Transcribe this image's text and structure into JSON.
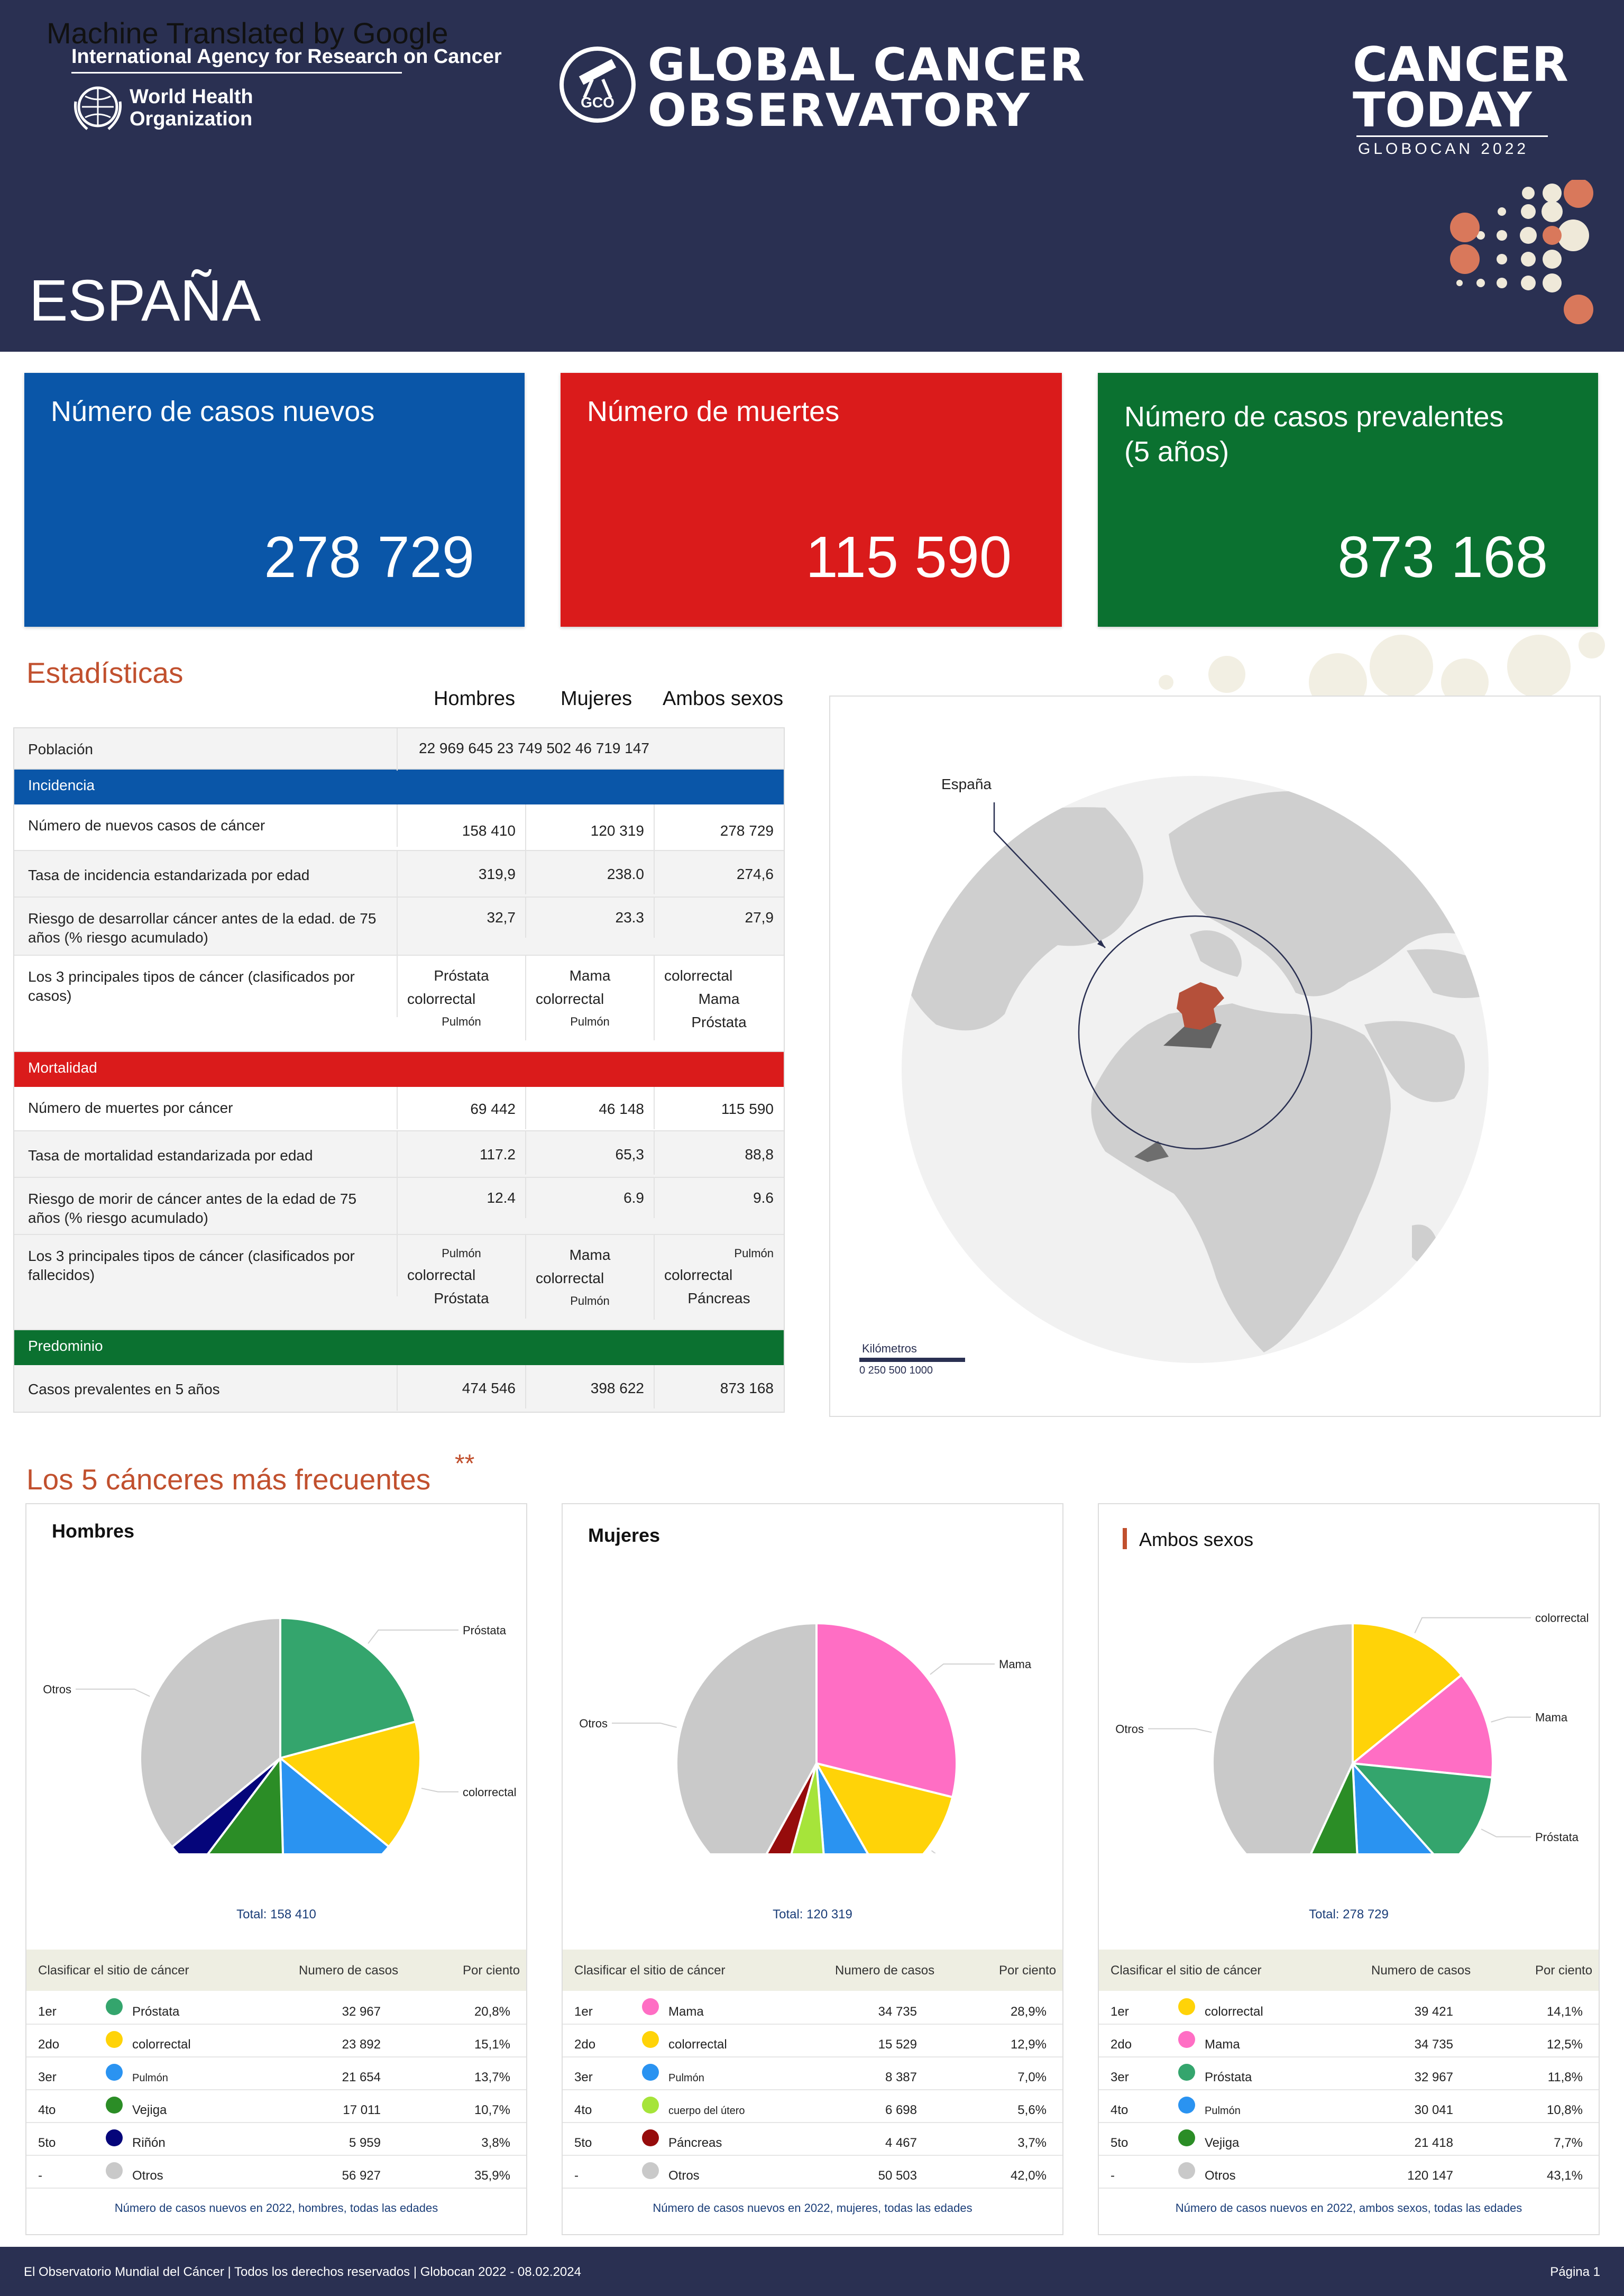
{
  "header": {
    "note": "Machine Translated by Google",
    "iarc": "International Agency for Research on Cancer",
    "who_line1": "World Health",
    "who_line2": "Organization",
    "gco_line1": "GLOBAL CANCER",
    "gco_line2": "OBSERVATORY",
    "gco_logo_text": "GCO",
    "ct_line1": "CANCER",
    "ct_line2": "TODAY",
    "ct_sub": "GLOBOCAN 2022",
    "country": "ESPAÑA"
  },
  "cards": [
    {
      "label": "Número de casos nuevos",
      "value": "278 729",
      "color": "#0a56a8"
    },
    {
      "label": "Número de muertes",
      "value": "115 590",
      "color": "#da1b1b"
    },
    {
      "label": "Número de casos prevalentes (5 años)",
      "value": "873 168",
      "color": "#0b7130"
    }
  ],
  "stats": {
    "title": "Estadísticas",
    "col_headers": [
      "Hombres",
      "Mujeres",
      "Ambos sexos"
    ],
    "population_label": "Población",
    "population_value": "22 969 645 23 749 502 46 719 147",
    "incidence_band": "Incidencia",
    "mortality_band": "Mortalidad",
    "prevalence_band": "Predominio",
    "band_colors": {
      "incidence": "#0a56a8",
      "mortality": "#da1b1b",
      "prevalence": "#0b7130"
    },
    "inc_rows": [
      {
        "label": "Número de nuevos casos de cáncer",
        "v": [
          "158 410",
          "120 319",
          "278 729"
        ]
      },
      {
        "label": "Tasa de incidencia estandarizada por edad",
        "v": [
          "319,9",
          "238.0",
          "274,6"
        ]
      },
      {
        "label": "Riesgo de desarrollar cáncer antes de la edad. de 75 años (% riesgo acumulado)",
        "v": [
          "32,7",
          "23.3",
          "27,9"
        ]
      }
    ],
    "inc_top3_label": "Los 3 principales tipos de cáncer (clasificados por casos)",
    "inc_top3": [
      [
        "Próstata",
        "colorrectal",
        "Pulmón"
      ],
      [
        "Mama",
        "colorrectal",
        "Pulmón"
      ],
      [
        "colorrectal",
        "Mama",
        "Próstata"
      ]
    ],
    "mort_rows": [
      {
        "label": "Número de muertes por cáncer",
        "v": [
          "69 442",
          "46 148",
          "115 590"
        ]
      },
      {
        "label": "Tasa de mortalidad estandarizada por edad",
        "v": [
          "117.2",
          "65,3",
          "88,8"
        ]
      },
      {
        "label": "Riesgo de morir de cáncer antes de la edad de 75 años (% riesgo acumulado)",
        "v": [
          "12.4",
          "6.9",
          "9.6"
        ]
      }
    ],
    "mort_top3_label": "Los 3 principales tipos de cáncer (clasificados por fallecidos)",
    "mort_top3": [
      [
        "Pulmón",
        "colorrectal",
        "Próstata"
      ],
      [
        "Mama",
        "colorrectal",
        "Pulmón"
      ],
      [
        "Pulmón",
        "colorrectal",
        "Páncreas"
      ]
    ],
    "prev_row": {
      "label": "Casos prevalentes en 5 años",
      "v": [
        "474 546",
        "398 622",
        "873 168"
      ]
    }
  },
  "map": {
    "label": "España",
    "scale_title": "Kilómetros",
    "scale_ticks": "0 250 500 1000"
  },
  "top5": {
    "title": "Los 5 cánceres más frecuentes",
    "marker": "**",
    "table_headers": [
      "Clasificar el sitio de cáncer",
      "Numero de casos",
      "Por ciento"
    ],
    "panels": [
      {
        "title": "Hombres",
        "total": "Total: 158 410",
        "footer": "Número de casos nuevos en 2022, hombres, todas las edades",
        "rows": [
          {
            "rank": "1er",
            "site": "Próstata",
            "cases": "32 967",
            "pct": "20,8%",
            "color": "#34a56d"
          },
          {
            "rank": "2do",
            "site": "colorrectal",
            "cases": "23 892",
            "pct": "15,1%",
            "color": "#ffd308"
          },
          {
            "rank": "3er",
            "site": "Pulmón",
            "cases": "21 654",
            "pct": "13,7%",
            "color": "#2a93f1"
          },
          {
            "rank": "4to",
            "site": "Vejiga",
            "cases": "17 011",
            "pct": "10,7%",
            "color": "#2b8d26"
          },
          {
            "rank": "5to",
            "site": "Riñón",
            "cases": "5 959",
            "pct": "3,8%",
            "color": "#05057a"
          },
          {
            "rank": "-",
            "site": "Otros",
            "cases": "56 927",
            "pct": "35,9%",
            "color": "#c9c9c9"
          }
        ]
      },
      {
        "title": "Mujeres",
        "total": "Total: 120 319",
        "footer": "Número de casos nuevos en 2022, mujeres, todas las edades",
        "rows": [
          {
            "rank": "1er",
            "site": "Mama",
            "cases": "34 735",
            "pct": "28,9%",
            "color": "#ff6ec4"
          },
          {
            "rank": "2do",
            "site": "colorrectal",
            "cases": "15 529",
            "pct": "12,9%",
            "color": "#ffd308"
          },
          {
            "rank": "3er",
            "site": "Pulmón",
            "cases": "8 387",
            "pct": "7,0%",
            "color": "#2a93f1"
          },
          {
            "rank": "4to",
            "site": "cuerpo del útero",
            "cases": "6 698",
            "pct": "5,6%",
            "color": "#a6e43a"
          },
          {
            "rank": "5to",
            "site": "Páncreas",
            "cases": "4 467",
            "pct": "3,7%",
            "color": "#960c0c"
          },
          {
            "rank": "-",
            "site": "Otros",
            "cases": "50 503",
            "pct": "42,0%",
            "color": "#c9c9c9"
          }
        ]
      },
      {
        "title": "Ambos sexos",
        "total": "Total: 278 729",
        "footer": "Número de casos nuevos en 2022, ambos sexos, todas las edades",
        "rows": [
          {
            "rank": "1er",
            "site": "colorrectal",
            "cases": "39 421",
            "pct": "14,1%",
            "color": "#ffd308"
          },
          {
            "rank": "2do",
            "site": "Mama",
            "cases": "34 735",
            "pct": "12,5%",
            "color": "#ff6ec4"
          },
          {
            "rank": "3er",
            "site": "Próstata",
            "cases": "32 967",
            "pct": "11,8%",
            "color": "#34a56d"
          },
          {
            "rank": "4to",
            "site": "Pulmón",
            "cases": "30 041",
            "pct": "10,8%",
            "color": "#2a93f1"
          },
          {
            "rank": "5to",
            "site": "Vejiga",
            "cases": "21 418",
            "pct": "7,7%",
            "color": "#2b8d26"
          },
          {
            "rank": "-",
            "site": "Otros",
            "cases": "120 147",
            "pct": "43,1%",
            "color": "#c9c9c9"
          }
        ]
      }
    ]
  },
  "chart_data": [
    {
      "type": "pie",
      "title": "Hombres",
      "categories": [
        "Próstata",
        "colorrectal",
        "Pulmón",
        "Vejiga",
        "Riñón",
        "Otros"
      ],
      "values": [
        32967,
        23892,
        21654,
        17011,
        5959,
        56927
      ]
    },
    {
      "type": "pie",
      "title": "Mujeres",
      "categories": [
        "Mama",
        "colorrectal",
        "Pulmón",
        "cuerpo del útero",
        "Páncreas",
        "Otros"
      ],
      "values": [
        34735,
        15529,
        8387,
        6698,
        4467,
        50503
      ]
    },
    {
      "type": "pie",
      "title": "Ambos sexos",
      "categories": [
        "colorrectal",
        "Mama",
        "Próstata",
        "Pulmón",
        "Vejiga",
        "Otros"
      ],
      "values": [
        39421,
        34735,
        32967,
        30041,
        21418,
        120147
      ]
    }
  ],
  "footer": {
    "left": "El Observatorio Mundial del Cáncer | Todos los derechos reservados | Globocan 2022 - 08.02.2024",
    "right": "Página 1"
  }
}
